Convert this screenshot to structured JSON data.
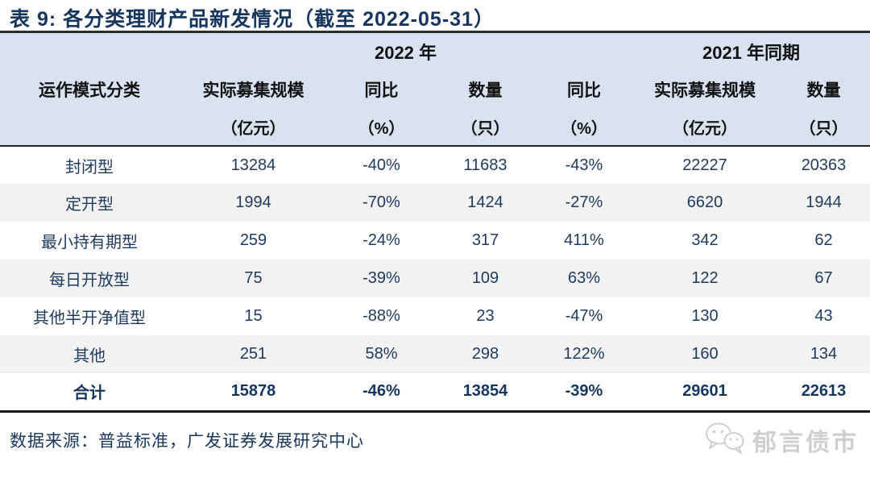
{
  "title": "表 9:  各分类理财产品新发情况（截至 2022-05-31）",
  "table": {
    "group_headers": [
      {
        "label": "",
        "colspan": 1
      },
      {
        "label": "2022 年",
        "colspan": 4
      },
      {
        "label": "2021 年同期",
        "colspan": 2
      }
    ],
    "columns": [
      {
        "name": "运作模式分类",
        "unit": ""
      },
      {
        "name": "实际募集规模",
        "unit": "（亿元）"
      },
      {
        "name": "同比",
        "unit": "（%）"
      },
      {
        "name": "数量",
        "unit": "（只）"
      },
      {
        "name": "同比",
        "unit": "（%）"
      },
      {
        "name": "实际募集规模",
        "unit": "（亿元）"
      },
      {
        "name": "数量",
        "unit": "（只）"
      }
    ],
    "rows": [
      {
        "label": "封闭型",
        "values": [
          "13284",
          "-40%",
          "11683",
          "-43%",
          "22227",
          "20363"
        ]
      },
      {
        "label": "定开型",
        "values": [
          "1994",
          "-70%",
          "1424",
          "-27%",
          "6620",
          "1944"
        ]
      },
      {
        "label": "最小持有期型",
        "values": [
          "259",
          "-24%",
          "317",
          "411%",
          "342",
          "62"
        ]
      },
      {
        "label": "每日开放型",
        "values": [
          "75",
          "-39%",
          "109",
          "63%",
          "122",
          "67"
        ]
      },
      {
        "label": "其他半开净值型",
        "values": [
          "15",
          "-88%",
          "23",
          "-47%",
          "130",
          "43"
        ]
      },
      {
        "label": "其他",
        "values": [
          "251",
          "58%",
          "298",
          "122%",
          "160",
          "134"
        ]
      }
    ],
    "total_row": {
      "label": "合计",
      "values": [
        "15878",
        "-46%",
        "13854",
        "-39%",
        "29601",
        "22613"
      ]
    }
  },
  "footer": {
    "source": "数据来源：普益标准，广发证券发展研究中心",
    "logo_text": "郁言债市",
    "logo_icon": "wechat-icon"
  },
  "colors": {
    "header_bg": "#d9e2f0",
    "alt_row_bg": "#f2f2f2",
    "data_text": "#1f3a5f",
    "title_text": "#17365d",
    "header_text": "#121212",
    "logo_gray": "#cfcfcf",
    "border_dark": "#222222"
  }
}
